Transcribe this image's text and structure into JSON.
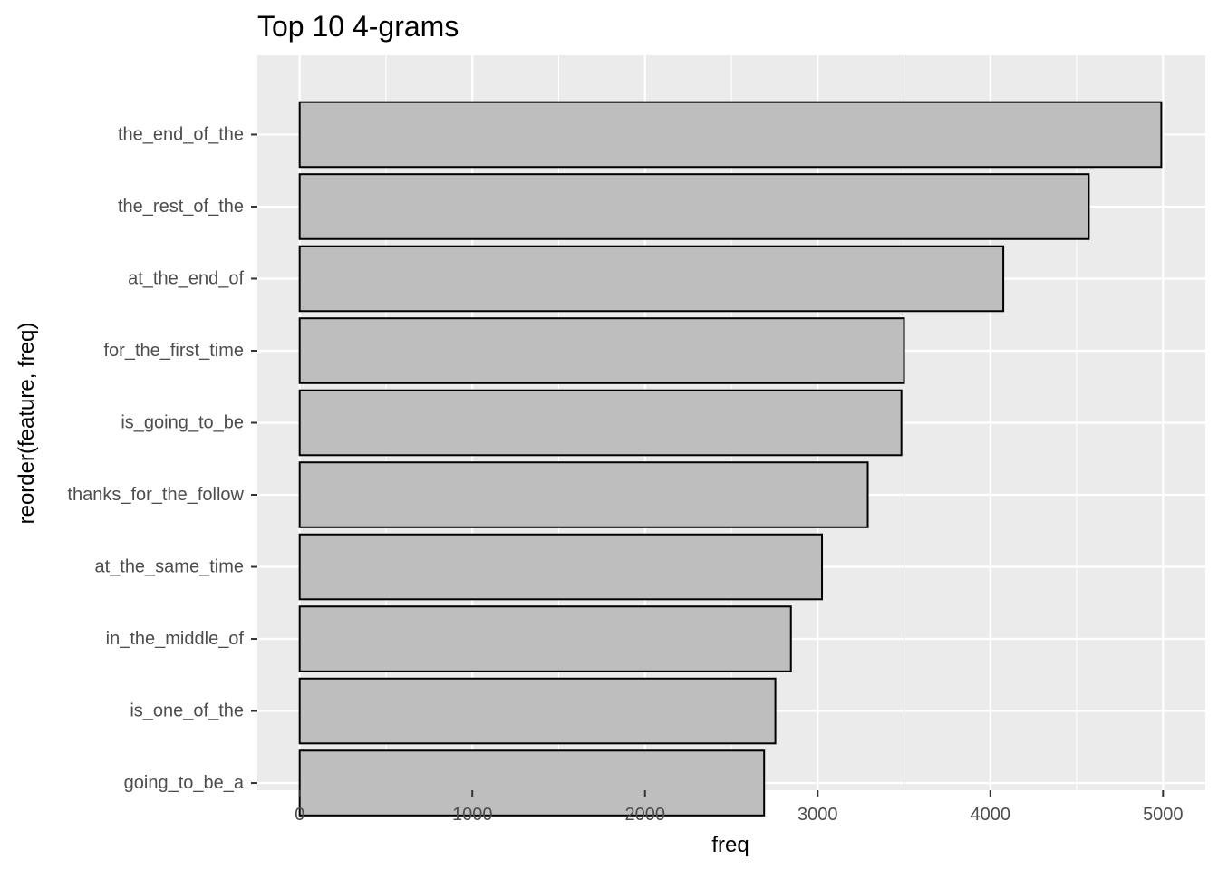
{
  "chart_data": {
    "type": "bar",
    "orientation": "horizontal",
    "title": "Top 10 4-grams",
    "xlabel": "freq",
    "ylabel": "reorder(feature, freq)",
    "categories": [
      "the_end_of_the",
      "the_rest_of_the",
      "at_the_end_of",
      "for_the_first_time",
      "is_going_to_be",
      "thanks_for_the_follow",
      "at_the_same_time",
      "in_the_middle_of",
      "is_one_of_the",
      "going_to_be_a"
    ],
    "values": [
      4990,
      4570,
      4075,
      3500,
      3485,
      3290,
      3025,
      2845,
      2755,
      2690
    ],
    "xlim": [
      -245,
      5245
    ],
    "x_ticks": [
      0,
      1000,
      2000,
      3000,
      4000,
      5000
    ],
    "x_tick_labels": [
      "0",
      "1000",
      "2000",
      "3000",
      "4000",
      "5000"
    ],
    "grid": true,
    "colors": {
      "panel_background": "#ebebeb",
      "grid": "#ffffff",
      "bar_fill": "#bebebe",
      "bar_outline": "#000000"
    }
  }
}
